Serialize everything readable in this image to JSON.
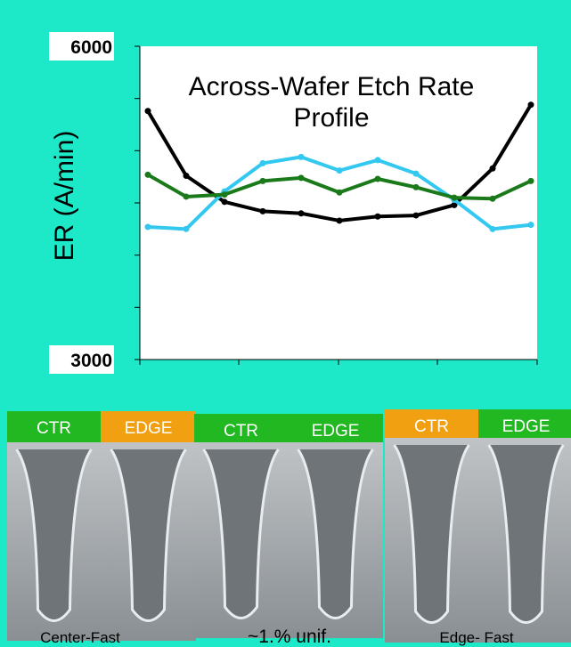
{
  "chart_data": {
    "type": "line",
    "title": "Across-Wafer Etch Rate Profile",
    "y_label": "ER (A/min)",
    "categories": [
      null,
      null,
      null,
      null,
      null,
      null,
      null,
      null,
      null,
      null,
      null
    ],
    "series": [
      {
        "color": "#000000",
        "values": [
          5380,
          4760,
          4510,
          4420,
          4400,
          4330,
          4370,
          4380,
          4480,
          4830,
          5440
        ]
      },
      {
        "color": "#33c8f0",
        "values": [
          4270,
          4250,
          4610,
          4880,
          4940,
          4810,
          4910,
          4780,
          4530,
          4250,
          4290
        ]
      },
      {
        "color": "#1a7a1a",
        "values": [
          4770,
          4560,
          4580,
          4710,
          4740,
          4600,
          4730,
          4650,
          4550,
          4540,
          4710
        ]
      }
    ],
    "ylim": [
      3000,
      6000
    ],
    "yticks": [
      3000,
      6000
    ],
    "minor_yticks": [
      3500,
      4000,
      4500,
      5000,
      5500
    ]
  },
  "panels": [
    {
      "headers": [
        "CTR",
        "EDGE"
      ],
      "caption": "Center-Fast"
    },
    {
      "headers": [
        "CTR",
        "EDGE"
      ],
      "caption": "~1.% unif."
    },
    {
      "headers": [
        "CTR",
        "EDGE"
      ],
      "caption": "Edge- Fast"
    }
  ]
}
